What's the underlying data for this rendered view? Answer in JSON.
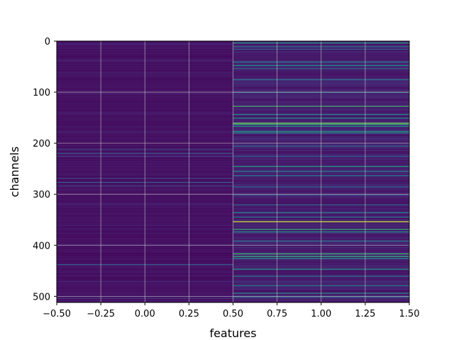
{
  "chart_data": {
    "type": "heatmap",
    "title": "",
    "xlabel": "features",
    "ylabel": "channels",
    "colormap": "viridis",
    "xlim": [
      -0.5,
      1.5
    ],
    "ylim": [
      512,
      0
    ],
    "y_inverted": true,
    "grid": true,
    "n_channels": 512,
    "n_features": 2,
    "x_ticks": [
      -0.5,
      -0.25,
      0.0,
      0.25,
      0.5,
      0.75,
      1.0,
      1.25,
      1.5
    ],
    "x_tick_labels": [
      "−0.50",
      "−0.25",
      "0.00",
      "0.25",
      "0.50",
      "0.75",
      "1.00",
      "1.25",
      "1.50"
    ],
    "y_ticks": [
      0,
      100,
      200,
      300,
      400,
      500
    ],
    "y_tick_labels": [
      "0",
      "100",
      "200",
      "300",
      "400",
      "500"
    ],
    "feature_0": {
      "base_value": 0.03,
      "highlights": [
        {
          "channel": 5,
          "value": 0.12
        },
        {
          "channel": 38,
          "value": 0.1
        },
        {
          "channel": 60,
          "value": 0.08
        },
        {
          "channel": 102,
          "value": 0.1
        },
        {
          "channel": 140,
          "value": 0.09
        },
        {
          "channel": 177,
          "value": 0.12
        },
        {
          "channel": 211,
          "value": 0.2
        },
        {
          "channel": 219,
          "value": 0.28
        },
        {
          "channel": 225,
          "value": 0.18
        },
        {
          "channel": 268,
          "value": 0.22
        },
        {
          "channel": 276,
          "value": 0.3
        },
        {
          "channel": 283,
          "value": 0.2
        },
        {
          "channel": 318,
          "value": 0.12
        },
        {
          "channel": 360,
          "value": 0.1
        },
        {
          "channel": 398,
          "value": 0.1
        },
        {
          "channel": 437,
          "value": 0.3
        },
        {
          "channel": 470,
          "value": 0.12
        },
        {
          "channel": 503,
          "value": 0.15
        }
      ]
    },
    "feature_1": {
      "base_value": 0.05,
      "highlights": [
        {
          "channel": 3,
          "value": 0.55
        },
        {
          "channel": 10,
          "value": 0.4
        },
        {
          "channel": 15,
          "value": 0.3
        },
        {
          "channel": 40,
          "value": 0.45
        },
        {
          "channel": 47,
          "value": 0.5
        },
        {
          "channel": 53,
          "value": 0.35
        },
        {
          "channel": 75,
          "value": 0.4
        },
        {
          "channel": 100,
          "value": 0.35
        },
        {
          "channel": 127,
          "value": 0.7
        },
        {
          "channel": 143,
          "value": 0.45
        },
        {
          "channel": 150,
          "value": 0.5
        },
        {
          "channel": 160,
          "value": 0.8
        },
        {
          "channel": 162,
          "value": 0.65
        },
        {
          "channel": 166,
          "value": 0.55
        },
        {
          "channel": 176,
          "value": 0.55
        },
        {
          "channel": 179,
          "value": 0.5
        },
        {
          "channel": 205,
          "value": 0.35
        },
        {
          "channel": 225,
          "value": 0.3
        },
        {
          "channel": 245,
          "value": 0.6
        },
        {
          "channel": 254,
          "value": 0.45
        },
        {
          "channel": 263,
          "value": 0.4
        },
        {
          "channel": 285,
          "value": 0.35
        },
        {
          "channel": 300,
          "value": 0.3
        },
        {
          "channel": 320,
          "value": 0.35
        },
        {
          "channel": 335,
          "value": 0.45
        },
        {
          "channel": 344,
          "value": 0.4
        },
        {
          "channel": 353,
          "value": 0.95
        },
        {
          "channel": 368,
          "value": 0.65
        },
        {
          "channel": 373,
          "value": 0.5
        },
        {
          "channel": 391,
          "value": 0.4
        },
        {
          "channel": 416,
          "value": 0.7
        },
        {
          "channel": 421,
          "value": 0.65
        },
        {
          "channel": 425,
          "value": 0.5
        },
        {
          "channel": 446,
          "value": 0.55
        },
        {
          "channel": 460,
          "value": 0.4
        },
        {
          "channel": 478,
          "value": 0.45
        },
        {
          "channel": 493,
          "value": 0.5
        },
        {
          "channel": 500,
          "value": 0.4
        }
      ]
    }
  }
}
